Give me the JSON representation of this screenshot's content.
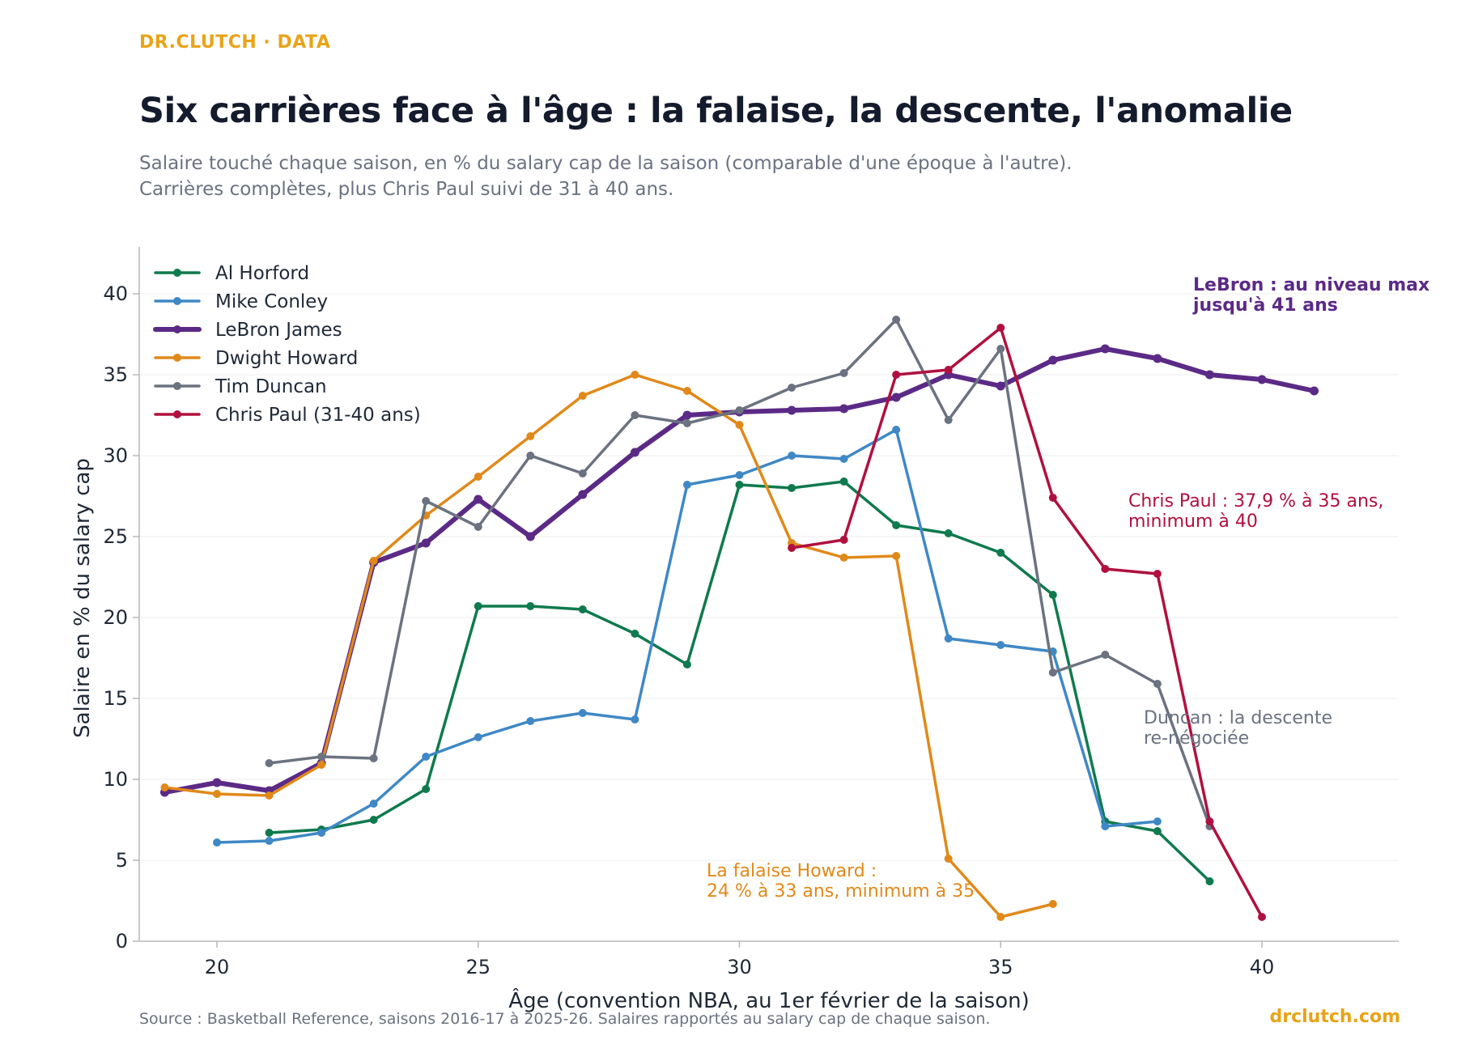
{
  "brand": "DR.CLUTCH · DATA",
  "title": "Six carrières face à l'âge : la falaise, la descente, l'anomalie",
  "subtitle_lines": [
    "Salaire touché chaque saison, en % du salary cap de la saison (comparable d'une époque à l'autre).",
    "Carrières complètes, plus Chris Paul suivi de 31 à 40 ans."
  ],
  "source": "Source : Basketball Reference, saisons 2016-17 à 2025-26. Salaires rapportés au salary cap de chaque saison.",
  "site": "drclutch.com",
  "chart_data": {
    "type": "line",
    "xlabel": "Âge (convention NBA, au 1er février de la saison)",
    "ylabel": "Salaire en % du salary cap",
    "xlim": [
      18.5,
      42.5
    ],
    "ylim": [
      0,
      43
    ],
    "xticks": [
      20,
      25,
      30,
      35,
      40
    ],
    "yticks": [
      0,
      5,
      10,
      15,
      20,
      25,
      30,
      35,
      40
    ],
    "grid": "horizontal",
    "legend_position": "top-left",
    "series": [
      {
        "name": "Al Horford",
        "color": "#0F7A4E",
        "width": 3.5,
        "points": [
          [
            21,
            6.7
          ],
          [
            22,
            6.9
          ],
          [
            23,
            7.5
          ],
          [
            24,
            9.4
          ],
          [
            25,
            20.7
          ],
          [
            26,
            20.7
          ],
          [
            27,
            20.5
          ],
          [
            28,
            19.0
          ],
          [
            29,
            17.1
          ],
          [
            30,
            28.2
          ],
          [
            31,
            28.0
          ],
          [
            32,
            28.4
          ],
          [
            33,
            25.7
          ],
          [
            34,
            25.2
          ],
          [
            35,
            24.0
          ],
          [
            36,
            21.4
          ],
          [
            37,
            7.4
          ],
          [
            38,
            6.8
          ],
          [
            39,
            3.7
          ]
        ]
      },
      {
        "name": "Mike Conley",
        "color": "#3F88C5",
        "width": 3.5,
        "points": [
          [
            20,
            6.1
          ],
          [
            21,
            6.2
          ],
          [
            22,
            6.7
          ],
          [
            23,
            8.5
          ],
          [
            24,
            11.4
          ],
          [
            25,
            12.6
          ],
          [
            26,
            13.6
          ],
          [
            27,
            14.1
          ],
          [
            28,
            13.7
          ],
          [
            29,
            28.2
          ],
          [
            30,
            28.8
          ],
          [
            31,
            30.0
          ],
          [
            32,
            29.8
          ],
          [
            33,
            31.6
          ],
          [
            34,
            18.7
          ],
          [
            35,
            18.3
          ],
          [
            36,
            17.9
          ],
          [
            37,
            7.1
          ],
          [
            38,
            7.4
          ]
        ]
      },
      {
        "name": "LeBron James",
        "color": "#5B2A86",
        "width": 6,
        "points": [
          [
            19,
            9.2
          ],
          [
            20,
            9.8
          ],
          [
            21,
            9.3
          ],
          [
            22,
            11.0
          ],
          [
            23,
            23.4
          ],
          [
            24,
            24.6
          ],
          [
            25,
            27.3
          ],
          [
            26,
            25.0
          ],
          [
            27,
            27.6
          ],
          [
            28,
            30.2
          ],
          [
            29,
            32.5
          ],
          [
            30,
            32.7
          ],
          [
            31,
            32.8
          ],
          [
            32,
            32.9
          ],
          [
            33,
            33.6
          ],
          [
            34,
            35.0
          ],
          [
            35,
            34.3
          ],
          [
            36,
            35.9
          ],
          [
            37,
            36.6
          ],
          [
            38,
            36.0
          ],
          [
            39,
            35.0
          ],
          [
            40,
            34.7
          ],
          [
            41,
            34.0
          ]
        ]
      },
      {
        "name": "Dwight Howard",
        "color": "#E0891A",
        "width": 3.5,
        "points": [
          [
            19,
            9.5
          ],
          [
            20,
            9.1
          ],
          [
            21,
            9.0
          ],
          [
            22,
            10.9
          ],
          [
            23,
            23.5
          ],
          [
            24,
            26.3
          ],
          [
            25,
            28.7
          ],
          [
            26,
            31.2
          ],
          [
            27,
            33.7
          ],
          [
            28,
            35.0
          ],
          [
            29,
            34.0
          ],
          [
            30,
            31.9
          ],
          [
            31,
            24.6
          ],
          [
            32,
            23.7
          ],
          [
            33,
            23.8
          ],
          [
            34,
            5.1
          ],
          [
            35,
            1.5
          ],
          [
            36,
            2.3
          ]
        ]
      },
      {
        "name": "Tim Duncan",
        "color": "#6B7280",
        "width": 3.5,
        "points": [
          [
            21,
            11.0
          ],
          [
            22,
            11.4
          ],
          [
            23,
            11.3
          ],
          [
            24,
            27.2
          ],
          [
            25,
            25.6
          ],
          [
            26,
            30.0
          ],
          [
            27,
            28.9
          ],
          [
            28,
            32.5
          ],
          [
            29,
            32.0
          ],
          [
            30,
            32.8
          ],
          [
            31,
            34.2
          ],
          [
            32,
            35.1
          ],
          [
            33,
            38.4
          ],
          [
            34,
            32.2
          ],
          [
            35,
            36.6
          ],
          [
            36,
            16.6
          ],
          [
            37,
            17.7
          ],
          [
            38,
            15.9
          ],
          [
            39,
            7.1
          ]
        ]
      },
      {
        "name": "Chris Paul (31-40 ans)",
        "color": "#B0103F",
        "width": 3.5,
        "points": [
          [
            31,
            24.3
          ],
          [
            32,
            24.8
          ],
          [
            33,
            35.0
          ],
          [
            34,
            35.3
          ],
          [
            35,
            37.9
          ],
          [
            36,
            27.4
          ],
          [
            37,
            23.0
          ],
          [
            38,
            22.7
          ],
          [
            39,
            7.4
          ],
          [
            40,
            1.5
          ]
        ]
      }
    ],
    "annotations": [
      {
        "id": "lebron",
        "lines": [
          "LeBron : au niveau max",
          "jusqu'à 41 ans"
        ],
        "color": "#5B2A86",
        "bold": true
      },
      {
        "id": "paul",
        "lines": [
          "Chris Paul : 37,9 % à 35 ans,",
          "minimum à 40"
        ],
        "color": "#B0103F",
        "bold": false
      },
      {
        "id": "duncan",
        "lines": [
          "Duncan : la descente",
          "re-négociée"
        ],
        "color": "#6B7280",
        "bold": false
      },
      {
        "id": "howard",
        "lines": [
          "La falaise Howard :",
          "24 % à 33 ans, minimum à 35"
        ],
        "color": "#E0891A",
        "bold": false
      }
    ]
  }
}
